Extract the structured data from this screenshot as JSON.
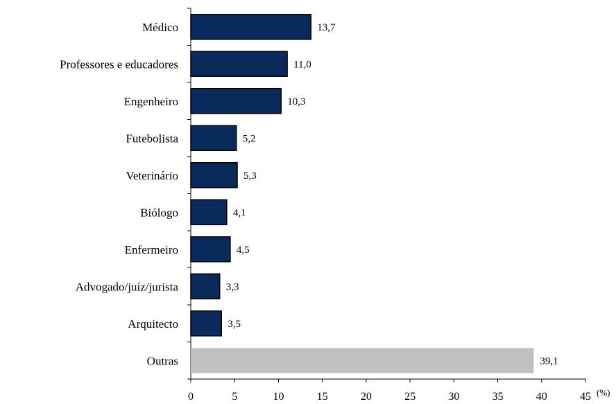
{
  "chart_data": {
    "type": "bar",
    "orientation": "horizontal",
    "categories": [
      "Médico",
      "Professores e educadores",
      "Engenheiro",
      "Futebolista",
      "Veterinário",
      "Biólogo",
      "Enfermeiro",
      "Advogado/juíz/jurista",
      "Arquitecto",
      "Outras"
    ],
    "values": [
      13.7,
      11.0,
      10.3,
      5.2,
      5.3,
      4.1,
      4.5,
      3.3,
      3.5,
      39.1
    ],
    "value_labels": [
      "13,7",
      "11,0",
      "10,3",
      "5,2",
      "5,3",
      "4,1",
      "4,5",
      "3,3",
      "3,5",
      "39,1"
    ],
    "bar_colors": [
      "#0b2a5c",
      "#0b2a5c",
      "#0b2a5c",
      "#0b2a5c",
      "#0b2a5c",
      "#0b2a5c",
      "#0b2a5c",
      "#0b2a5c",
      "#0b2a5c",
      "#c0c0c0"
    ],
    "xlim": [
      0,
      45
    ],
    "xticks": [
      0,
      5,
      10,
      15,
      20,
      25,
      30,
      35,
      40,
      45
    ],
    "xunit": "(%)",
    "grid": false,
    "legend": "none"
  }
}
